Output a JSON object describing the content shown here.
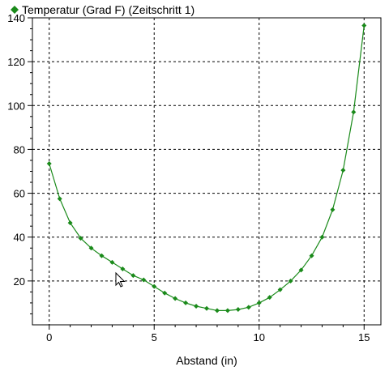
{
  "chart_data": {
    "type": "line",
    "xlabel": "Abstand (in)",
    "ylabel": "",
    "xlim": [
      -0.8,
      15.8
    ],
    "ylim": [
      0,
      140
    ],
    "x_ticks": [
      0,
      5,
      10,
      15
    ],
    "y_ticks": [
      20,
      40,
      60,
      80,
      100,
      120,
      140
    ],
    "grid": true,
    "legend_position": "top-left",
    "series": [
      {
        "name": "Temperatur (Grad F) (Zeitschritt 1)",
        "color": "#1a8a1a",
        "marker": "diamond",
        "x": [
          0,
          0.5,
          1,
          1.5,
          2,
          2.5,
          3,
          3.5,
          4,
          4.5,
          5,
          5.5,
          6,
          6.5,
          7,
          7.5,
          8,
          8.5,
          9,
          9.5,
          10,
          10.5,
          11,
          11.5,
          12,
          12.5,
          13,
          13.5,
          14,
          14.5,
          15
        ],
        "y": [
          73.5,
          57.5,
          46.5,
          39.5,
          35,
          31.5,
          28.5,
          25.5,
          22.5,
          20.5,
          17.5,
          14.5,
          12,
          10,
          8.5,
          7.5,
          6.5,
          6.5,
          7,
          8,
          10,
          12.5,
          16,
          20,
          25,
          31.5,
          40,
          52.5,
          70.5,
          97,
          136.5
        ]
      }
    ]
  }
}
